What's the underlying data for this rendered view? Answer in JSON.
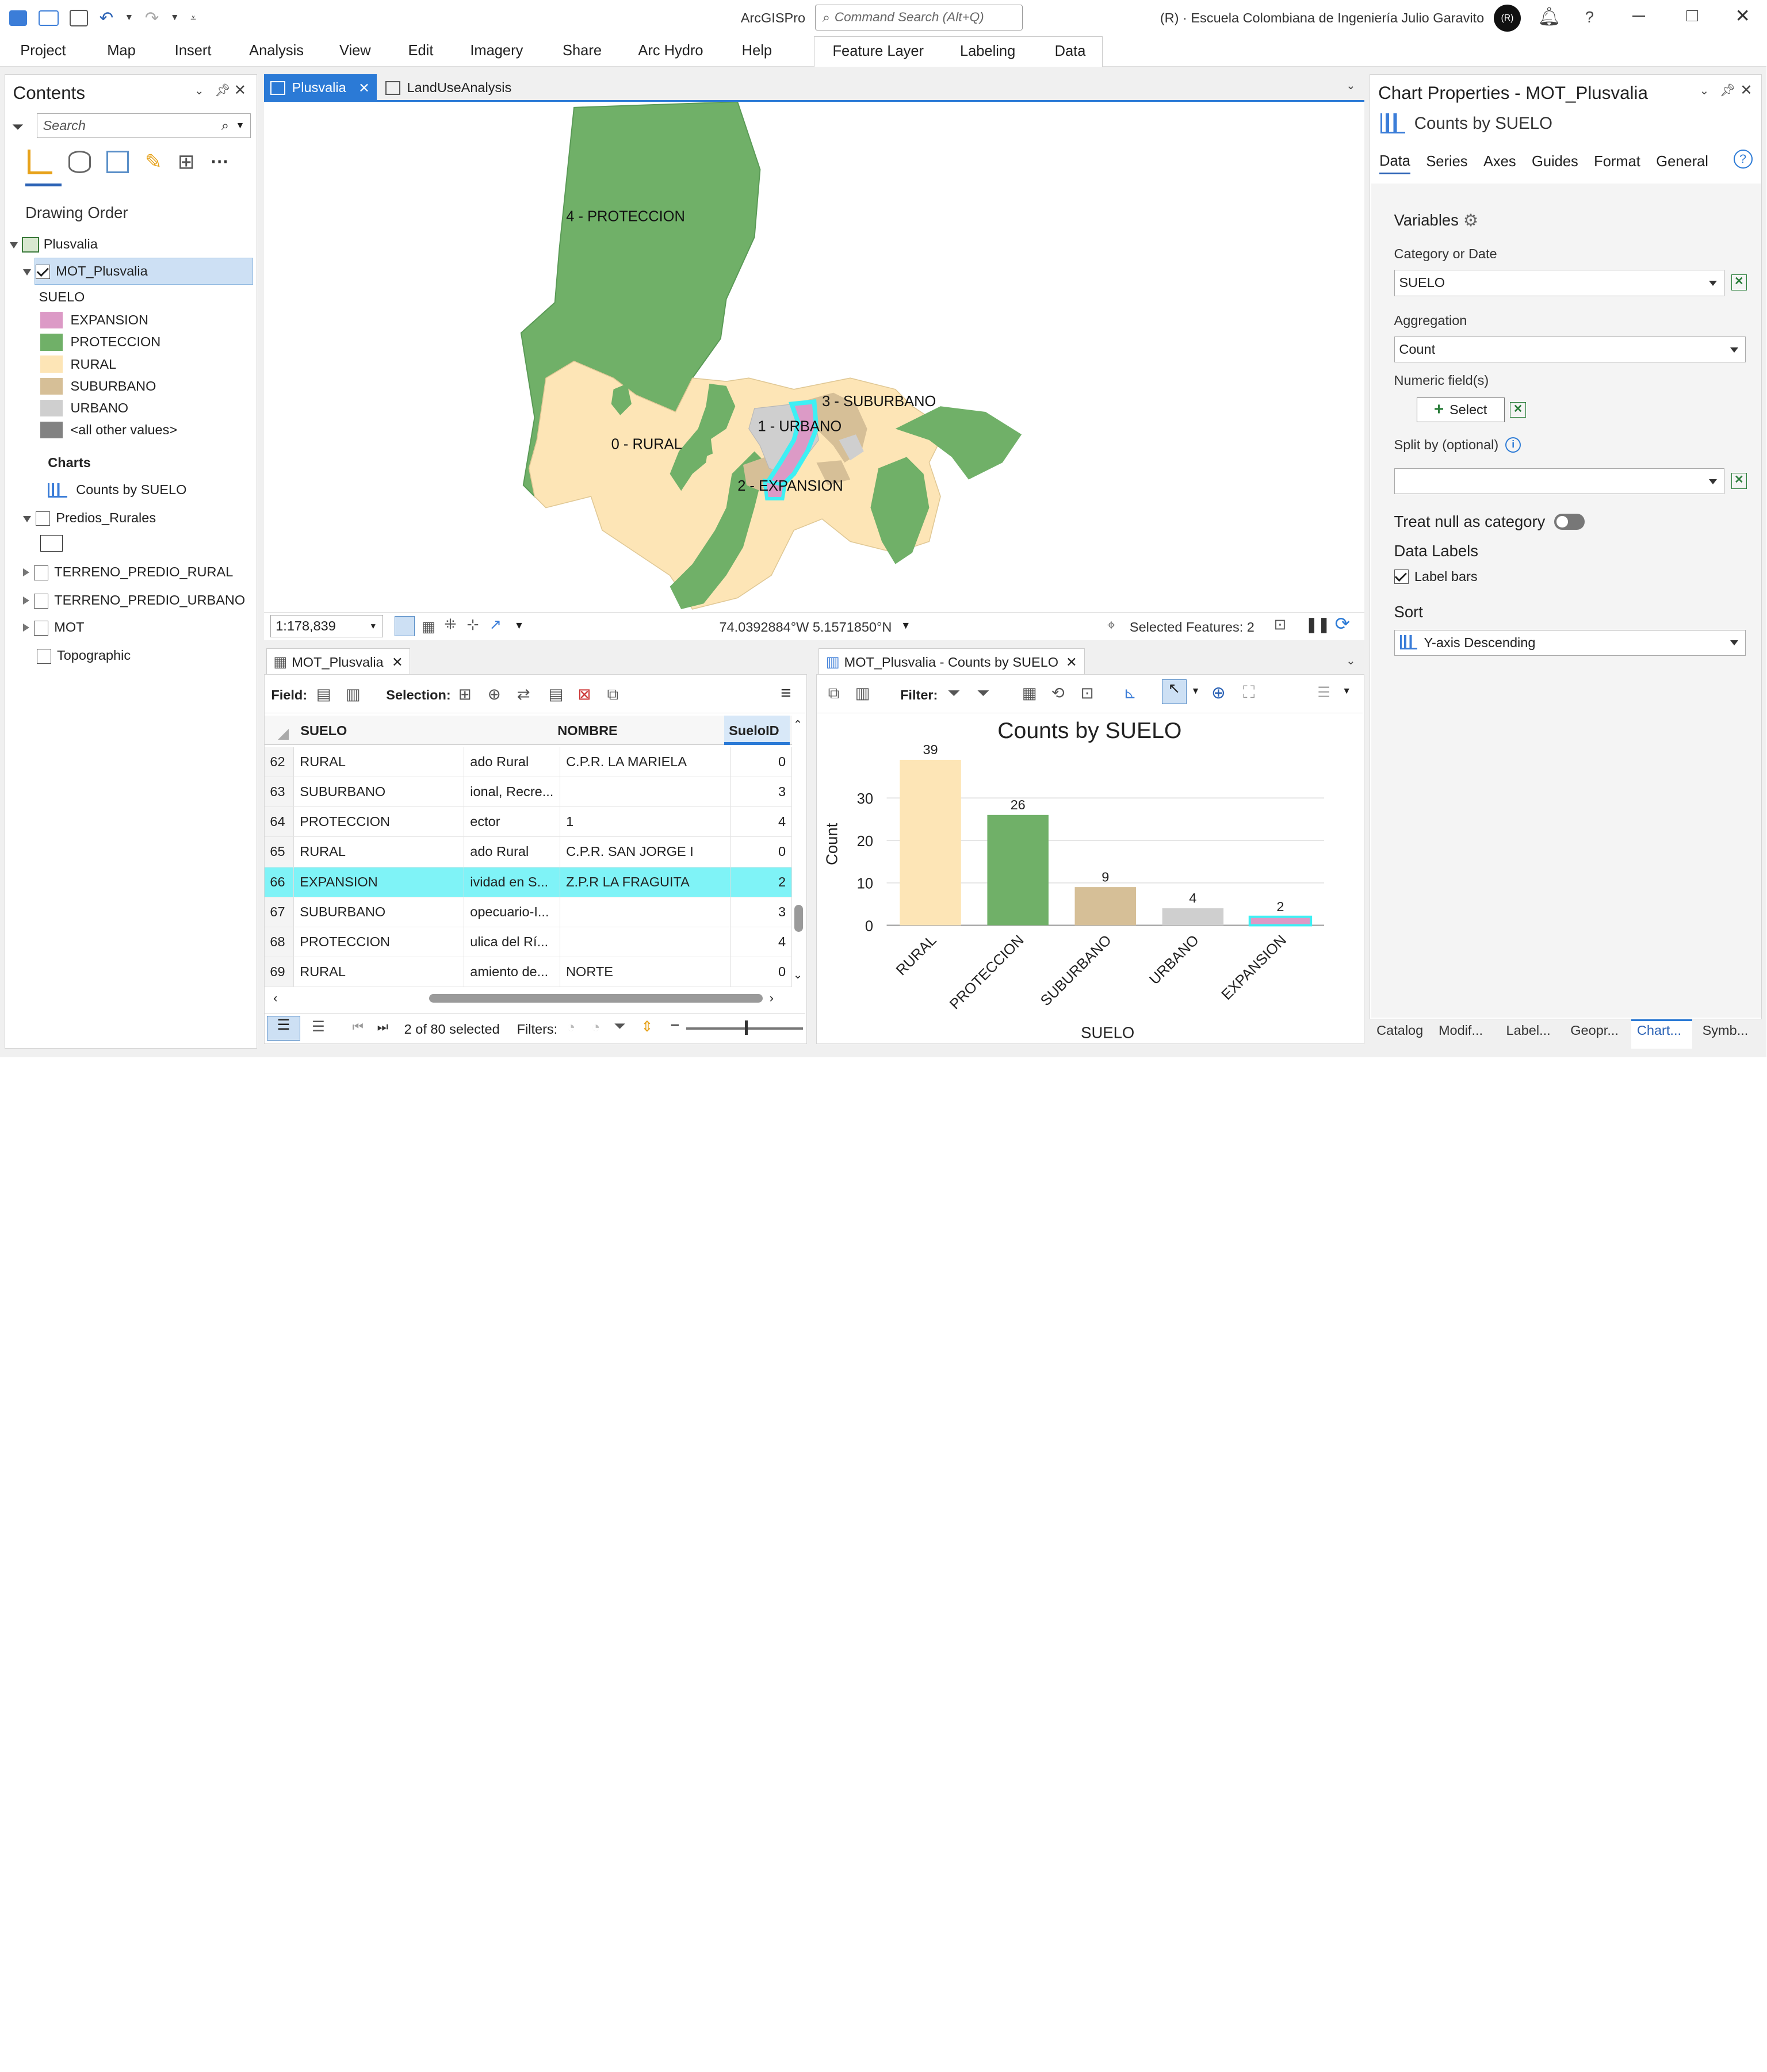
{
  "app": {
    "name": "ArcGISPro",
    "command_search_placeholder": "Command Search (Alt+Q)",
    "org": "(R) · Escuela Colombiana de Ingeniería Julio Garavito",
    "avatar": "(R)"
  },
  "ribbon": {
    "tabs": [
      "Project",
      "Map",
      "Insert",
      "Analysis",
      "View",
      "Edit",
      "Imagery",
      "Share",
      "Arc Hydro",
      "Help"
    ],
    "context_tabs": [
      "Feature Layer",
      "Labeling",
      "Data"
    ]
  },
  "contents": {
    "title": "Contents",
    "search_placeholder": "Search",
    "drawing_order": "Drawing Order",
    "map_name": "Plusvalia",
    "layer": "MOT_Plusvalia",
    "field": "SUELO",
    "legend": [
      {
        "label": "EXPANSION",
        "color": "#dc9ac6"
      },
      {
        "label": "PROTECCION",
        "color": "#70b068"
      },
      {
        "label": "RURAL",
        "color": "#fde5b6"
      },
      {
        "label": "SUBURBANO",
        "color": "#d6bf97"
      },
      {
        "label": "URBANO",
        "color": "#cfcfcf"
      },
      {
        "label": "<all other values>",
        "color": "#828282"
      }
    ],
    "charts_label": "Charts",
    "chart_item": "Counts by SUELO",
    "other_layers": [
      "Predios_Rurales",
      "TERRENO_PREDIO_RURAL",
      "TERRENO_PREDIO_URBANO",
      "MOT",
      "Topographic"
    ]
  },
  "map": {
    "tabs": [
      "Plusvalia",
      "LandUseAnalysis"
    ],
    "labels": {
      "protec": "4 - PROTECCION",
      "rural": "0 - RURAL",
      "urbano": "1 - URBANO",
      "suburbano": "3 - SUBURBANO",
      "expansion": "2 - EXPANSION"
    },
    "scale": "1:178,839",
    "coords": "74.0392884°W 5.1571850°N",
    "selected_features": "Selected Features: 2"
  },
  "table": {
    "tab": "MOT_Plusvalia",
    "field_label": "Field:",
    "selection_label": "Selection:",
    "columns": [
      "SUELO",
      "",
      "NOMBRE",
      "SueloID"
    ],
    "rows": [
      {
        "n": "62",
        "suelo": "RURAL",
        "desc": "ado Rural",
        "nombre": "C.P.R. LA MARIELA",
        "id": "0"
      },
      {
        "n": "63",
        "suelo": "SUBURBANO",
        "desc": "ional, Recre...",
        "nombre": "",
        "id": "3"
      },
      {
        "n": "64",
        "suelo": "PROTECCION",
        "desc": "ector",
        "nombre": "1",
        "id": "4"
      },
      {
        "n": "65",
        "suelo": "RURAL",
        "desc": "ado Rural",
        "nombre": "C.P.R. SAN JORGE I",
        "id": "0"
      },
      {
        "n": "66",
        "suelo": "EXPANSION",
        "desc": "ividad en S...",
        "nombre": "Z.P.R LA FRAGUITA",
        "id": "2"
      },
      {
        "n": "67",
        "suelo": "SUBURBANO",
        "desc": "opecuario-I...",
        "nombre": "",
        "id": "3"
      },
      {
        "n": "68",
        "suelo": "PROTECCION",
        "desc": "ulica del Rí...",
        "nombre": "",
        "id": "4"
      },
      {
        "n": "69",
        "suelo": "RURAL",
        "desc": "amiento de...",
        "nombre": "NORTE",
        "id": "0"
      }
    ],
    "selected_count": "2 of 80 selected",
    "filters_label": "Filters:"
  },
  "chartpane": {
    "tab": "MOT_Plusvalia - Counts by SUELO",
    "filter_label": "Filter:"
  },
  "chart_data": {
    "type": "bar",
    "title": "Counts by SUELO",
    "xlabel": "SUELO",
    "ylabel": "Count",
    "categories": [
      "RURAL",
      "PROTECCION",
      "SUBURBANO",
      "URBANO",
      "EXPANSION"
    ],
    "values": [
      39,
      26,
      9,
      4,
      2
    ],
    "colors": [
      "#fde5b6",
      "#70b068",
      "#d6bf97",
      "#cfcfcf",
      "#dc9ac6"
    ],
    "ylim": [
      0,
      42
    ],
    "yticks": [
      0,
      10,
      20,
      30
    ],
    "data_labels": true
  },
  "props": {
    "title": "Chart Properties - MOT_Plusvalia",
    "subtitle": "Counts by SUELO",
    "tabs": [
      "Data",
      "Series",
      "Axes",
      "Guides",
      "Format",
      "General"
    ],
    "variables": "Variables",
    "category_label": "Category or Date",
    "category_value": "SUELO",
    "aggregation_label": "Aggregation",
    "aggregation_value": "Count",
    "numeric_label": "Numeric field(s)",
    "select_btn": "Select",
    "split_label": "Split by (optional)",
    "treat_null": "Treat null as category",
    "data_labels": "Data Labels",
    "label_bars": "Label bars",
    "sort": "Sort",
    "sort_value": "Y-axis Descending"
  },
  "bottom_tabs": [
    "Catalog",
    "Modif...",
    "Label...",
    "Geopr...",
    "Chart...",
    "Symb..."
  ]
}
